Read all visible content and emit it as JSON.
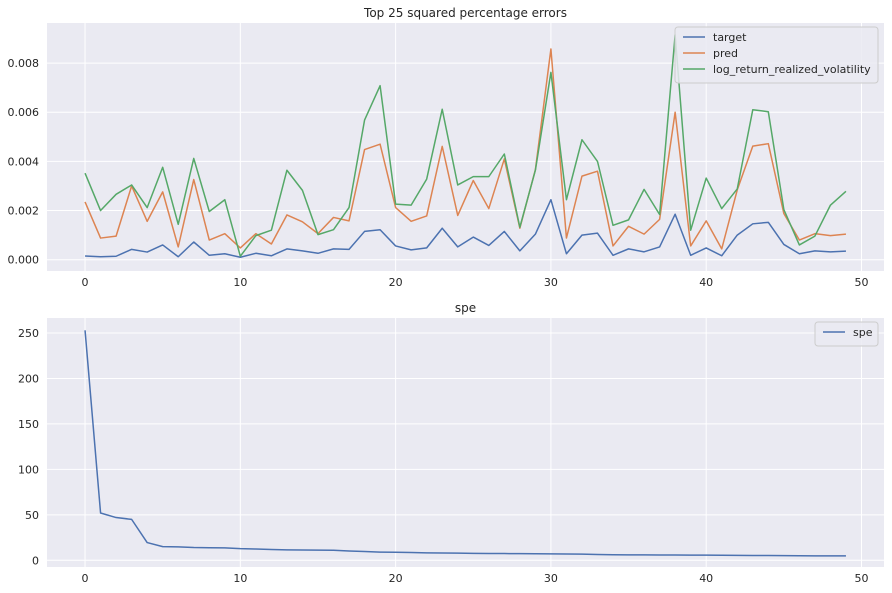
{
  "chart_data": [
    {
      "type": "line",
      "title": "Top 25 squared percentage errors",
      "xlabel": "",
      "ylabel": "",
      "xlim": [
        -2.45,
        51.45
      ],
      "ylim": [
        -0.00046,
        0.00963
      ],
      "xticks": [
        0,
        10,
        20,
        30,
        40,
        50
      ],
      "yticks": [
        0.0,
        0.002,
        0.004,
        0.006,
        0.008
      ],
      "ytick_labels": [
        "0.000",
        "0.002",
        "0.004",
        "0.006",
        "0.008"
      ],
      "grid": true,
      "legend": "top-right",
      "x": [
        0,
        1,
        2,
        3,
        4,
        5,
        6,
        7,
        8,
        9,
        10,
        11,
        12,
        13,
        14,
        15,
        16,
        17,
        18,
        19,
        20,
        21,
        22,
        23,
        24,
        25,
        26,
        27,
        28,
        29,
        30,
        31,
        32,
        33,
        34,
        35,
        36,
        37,
        38,
        39,
        40,
        41,
        42,
        43,
        44,
        45,
        46,
        47,
        48,
        49
      ],
      "series": [
        {
          "name": "target",
          "color": "#4c72b0",
          "values": [
            0.00015,
            0.00012,
            0.00014,
            0.00042,
            0.00031,
            0.0006,
            0.00012,
            0.00072,
            0.00018,
            0.00024,
            0.0001,
            0.00026,
            0.00016,
            0.00044,
            0.00036,
            0.00026,
            0.00044,
            0.00042,
            0.00115,
            0.00122,
            0.00056,
            0.0004,
            0.00048,
            0.00128,
            0.00052,
            0.00092,
            0.00058,
            0.00115,
            0.00036,
            0.00104,
            0.00244,
            0.00024,
            0.001,
            0.00108,
            0.00018,
            0.00044,
            0.00032,
            0.00052,
            0.00185,
            0.00018,
            0.00048,
            0.00016,
            0.001,
            0.00146,
            0.00152,
            0.00062,
            0.00024,
            0.00036,
            0.00032,
            0.00035
          ]
        },
        {
          "name": "pred",
          "color": "#dd8452",
          "values": [
            0.00235,
            0.00088,
            0.00096,
            0.003,
            0.00156,
            0.00276,
            0.00052,
            0.00326,
            0.0008,
            0.00106,
            0.00048,
            0.00106,
            0.00064,
            0.00182,
            0.00154,
            0.00106,
            0.00172,
            0.00158,
            0.00448,
            0.0047,
            0.00212,
            0.00156,
            0.00178,
            0.00461,
            0.0018,
            0.00322,
            0.00208,
            0.0041,
            0.00128,
            0.00366,
            0.00857,
            0.00088,
            0.0034,
            0.0036,
            0.00056,
            0.00136,
            0.00104,
            0.00164,
            0.006,
            0.00056,
            0.00158,
            0.00044,
            0.00284,
            0.00462,
            0.00472,
            0.00188,
            0.0008,
            0.00106,
            0.00098,
            0.00104
          ]
        },
        {
          "name": "log_return_realized_volatility",
          "color": "#55a868",
          "values": [
            0.00352,
            0.002,
            0.00266,
            0.00304,
            0.00212,
            0.00376,
            0.00144,
            0.00412,
            0.00196,
            0.00244,
            0.00014,
            0.00098,
            0.0012,
            0.00364,
            0.00282,
            0.00102,
            0.00122,
            0.00212,
            0.00568,
            0.00708,
            0.00226,
            0.00222,
            0.00328,
            0.00612,
            0.00304,
            0.00338,
            0.00338,
            0.0043,
            0.00132,
            0.00364,
            0.00762,
            0.00244,
            0.00488,
            0.004,
            0.0014,
            0.00162,
            0.00286,
            0.00184,
            0.00915,
            0.0012,
            0.00332,
            0.00208,
            0.00288,
            0.0061,
            0.00602,
            0.00204,
            0.0006,
            0.00096,
            0.00222,
            0.00278
          ]
        }
      ]
    },
    {
      "type": "line",
      "title": "spe",
      "xlabel": "",
      "ylabel": "",
      "xlim": [
        -2.45,
        51.45
      ],
      "ylim": [
        -7.4,
        266.5
      ],
      "xticks": [
        0,
        10,
        20,
        30,
        40,
        50
      ],
      "yticks": [
        0,
        50,
        100,
        150,
        200,
        250
      ],
      "ytick_labels": [
        "0",
        "50",
        "100",
        "150",
        "200",
        "250"
      ],
      "grid": true,
      "legend": "top-right",
      "x": [
        0,
        1,
        2,
        3,
        4,
        5,
        6,
        7,
        8,
        9,
        10,
        11,
        12,
        13,
        14,
        15,
        16,
        17,
        18,
        19,
        20,
        21,
        22,
        23,
        24,
        25,
        26,
        27,
        28,
        29,
        30,
        31,
        32,
        33,
        34,
        35,
        36,
        37,
        38,
        39,
        40,
        41,
        42,
        43,
        44,
        45,
        46,
        47,
        48,
        49
      ],
      "series": [
        {
          "name": "spe",
          "color": "#4c72b0",
          "values": [
            253,
            52,
            47,
            45,
            19.5,
            15,
            14.8,
            14,
            13.8,
            13.6,
            12.8,
            12.4,
            11.8,
            11.4,
            11.3,
            11.2,
            11,
            10.2,
            9.6,
            9,
            8.8,
            8.6,
            8.2,
            8,
            7.8,
            7.6,
            7.5,
            7.4,
            7.3,
            7.2,
            7,
            6.9,
            6.7,
            6.3,
            6.1,
            6,
            5.9,
            5.8,
            5.8,
            5.7,
            5.6,
            5.5,
            5.4,
            5.3,
            5.2,
            5.1,
            5,
            4.9,
            4.9,
            4.8
          ]
        }
      ]
    }
  ]
}
